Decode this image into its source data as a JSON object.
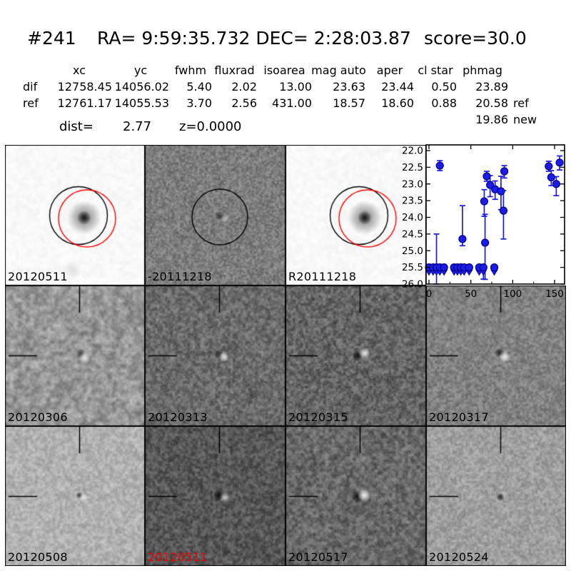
{
  "header": {
    "candidate_id": "#241",
    "coordinates": "RA= 9:59:35.732 DEC= 2:28:03.87",
    "score": "score=30.0"
  },
  "photometry_table": {
    "columns": [
      "xc",
      "yc",
      "fwhm",
      "fluxrad",
      "isoarea",
      "mag auto",
      "aper",
      "cl star",
      "phmag"
    ],
    "rows": [
      {
        "name": "dif",
        "values": [
          "12758.45",
          "14056.02",
          "5.40",
          "2.02",
          "13.00",
          "23.63",
          "23.44",
          "0.50",
          "23.89"
        ],
        "suffix": ""
      },
      {
        "name": "ref",
        "values": [
          "12761.17",
          "14055.53",
          "3.70",
          "2.56",
          "431.00",
          "18.57",
          "18.60",
          "0.88",
          "20.58"
        ],
        "suffix": "ref"
      },
      {
        "name": "",
        "values": [
          "",
          "",
          "",
          "",
          "",
          "",
          "",
          "",
          "19.86"
        ],
        "suffix": "new"
      }
    ],
    "dist_label": "dist=",
    "dist_value": "2.77",
    "redshift": "z=0.0000"
  },
  "panels": [
    {
      "label": "20120511",
      "label_color": "#000000",
      "tone": "#fafafa",
      "row": 0,
      "col": 0,
      "kind": "stamp"
    },
    {
      "label": "-20111218",
      "label_color": "#000000",
      "tone": "#7e7e7e",
      "row": 0,
      "col": 1,
      "kind": "diffcircle"
    },
    {
      "label": "R20111218",
      "label_color": "#000000",
      "tone": "#fafafa",
      "row": 0,
      "col": 2,
      "kind": "stamp"
    },
    {
      "label": "20120306",
      "label_color": "#000000",
      "tone": "#989898",
      "row": 1,
      "col": 0,
      "kind": "diff"
    },
    {
      "label": "20120313",
      "label_color": "#000000",
      "tone": "#6c6c6c",
      "row": 1,
      "col": 1,
      "kind": "diff"
    },
    {
      "label": "20120315",
      "label_color": "#000000",
      "tone": "#666666",
      "row": 1,
      "col": 2,
      "kind": "diff"
    },
    {
      "label": "20120317",
      "label_color": "#000000",
      "tone": "#838383",
      "row": 1,
      "col": 3,
      "kind": "diff"
    },
    {
      "label": "20120508",
      "label_color": "#000000",
      "tone": "#b2b2b2",
      "row": 2,
      "col": 0,
      "kind": "diff"
    },
    {
      "label": "20120511",
      "label_color": "#ee0000",
      "tone": "#585858",
      "row": 2,
      "col": 1,
      "kind": "diff"
    },
    {
      "label": "20120517",
      "label_color": "#000000",
      "tone": "#6a6a6a",
      "row": 2,
      "col": 2,
      "kind": "diff"
    },
    {
      "label": "20120524",
      "label_color": "#000000",
      "tone": "#a0a0a0",
      "row": 2,
      "col": 3,
      "kind": "diff"
    }
  ],
  "chart_data": {
    "type": "scatter",
    "title": "",
    "xlabel": "",
    "ylabel": "",
    "x_ticks": [
      0,
      50,
      100,
      150
    ],
    "x_tick_labels": [
      "0",
      "50",
      "100",
      "150"
    ],
    "x_minor_ticks": [
      25,
      75,
      125
    ],
    "y_ticks": [
      22.0,
      22.5,
      23.0,
      23.5,
      24.0,
      24.5,
      25.0,
      25.5,
      26.0
    ],
    "y_tick_labels": [
      "22.0",
      "22.5",
      "23.0",
      "23.5",
      "24.0",
      "24.5",
      "25.0",
      "25.5",
      "26.0"
    ],
    "xlim": [
      -3.4,
      162
    ],
    "ylim": [
      26.0,
      21.83
    ],
    "y_inverted": true,
    "grid": false,
    "legend": null,
    "marker_color": "#1c1ce8",
    "marker_edge": "#00008b",
    "series": [
      {
        "name": "detections",
        "note": "points are [x, mag, err_below, err_above]",
        "points": [
          [
            13,
            22.45,
            0.15,
            0.15
          ],
          [
            40,
            24.65,
            0.2,
            1.0
          ],
          [
            66,
            23.52,
            0.45,
            0.35
          ],
          [
            67,
            24.76,
            1.1,
            0.85
          ],
          [
            69,
            22.77,
            0.15,
            0.15
          ],
          [
            73,
            23.03,
            0.35,
            0.28
          ],
          [
            79,
            23.16,
            0.3,
            0.25
          ],
          [
            86,
            23.22,
            0.55,
            0.45
          ],
          [
            89,
            23.8,
            0.85,
            0.6
          ],
          [
            90,
            22.62,
            0.2,
            0.17
          ],
          [
            143,
            22.47,
            0.15,
            0.15
          ],
          [
            146,
            22.8,
            0.25,
            0.2
          ],
          [
            152,
            23.0,
            0.35,
            0.22
          ],
          [
            156,
            22.36,
            0.22,
            0.2
          ]
        ]
      },
      {
        "name": "upper_limits",
        "mag": 25.5,
        "note": "points are [x, err_below, err_above]",
        "points": [
          [
            0,
            0,
            0
          ],
          [
            5,
            0,
            0
          ],
          [
            9,
            0.5,
            1.0
          ],
          [
            13,
            0,
            0
          ],
          [
            18,
            0,
            0
          ],
          [
            30,
            0,
            0
          ],
          [
            34,
            0,
            0
          ],
          [
            38,
            0,
            0
          ],
          [
            42,
            0,
            0
          ],
          [
            48,
            0,
            0
          ],
          [
            60,
            0,
            0
          ],
          [
            65,
            0.35,
            0
          ],
          [
            78,
            0,
            0
          ]
        ]
      }
    ]
  }
}
